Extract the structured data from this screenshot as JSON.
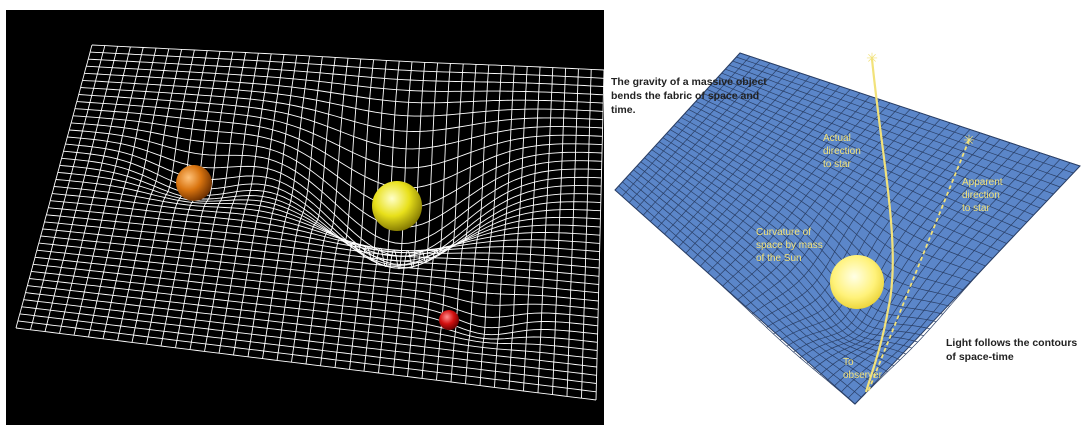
{
  "left": {
    "background": "#000000",
    "grid_color": "#ffffff",
    "spheres": [
      {
        "name": "orange-sphere",
        "color": "#d9740f"
      },
      {
        "name": "yellow-sphere",
        "color": "#e8e01a"
      },
      {
        "name": "red-sphere",
        "color": "#d41010"
      }
    ]
  },
  "right": {
    "fabric_color": "#5b86c9",
    "grid_color": "#2a3f66",
    "sun_color": "#fff27a",
    "caption_top": [
      "The gravity of a massive object",
      "bends the fabric of space and",
      "time."
    ],
    "caption_bottom": [
      "Light follows the contours",
      "of space-time"
    ],
    "label_actual": [
      "Actual",
      "direction",
      "to star"
    ],
    "label_apparent": [
      "Apparent",
      "direction",
      "to star"
    ],
    "label_curvature": [
      "Curvature of",
      "space by mass",
      "of the Sun"
    ],
    "label_observer": [
      "To",
      "observer"
    ]
  }
}
